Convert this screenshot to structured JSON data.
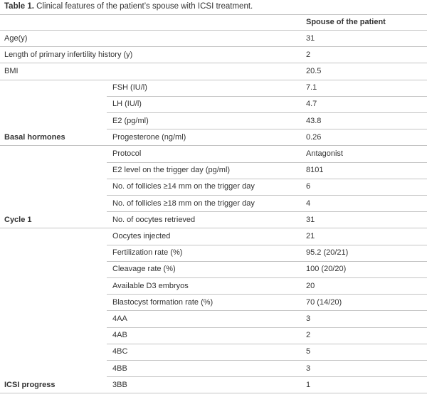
{
  "table": {
    "title": {
      "label": "Table 1.",
      "text": "Clinical features of the patient’s spouse with ICSI treatment."
    },
    "header": "Spouse of the patient",
    "rows": [
      {
        "label": "Age(y)",
        "value": 31
      },
      {
        "label": "Length of primary infertility history (y)",
        "value": 2
      },
      {
        "label": "BMI",
        "value": 20.5
      },
      {
        "param": "FSH (IU/l)",
        "value": 7.1
      },
      {
        "param": "LH (IU/l)",
        "value": 4.7
      },
      {
        "param": "E2 (pg/ml)",
        "value": 43.8
      },
      {
        "group": "Basal hormones",
        "param": "Progesterone (ng/ml)",
        "value": 0.26
      },
      {
        "param": "Protocol",
        "value": "Antagonist"
      },
      {
        "param": "E2 level on the trigger day (pg/ml)",
        "value": 8101
      },
      {
        "param": "No. of follicles ≥14 mm on the trigger day",
        "value": 6
      },
      {
        "param": "No. of follicles ≥18 mm on the trigger day",
        "value": 4
      },
      {
        "group": "Cycle 1",
        "param": "No. of oocytes retrieved",
        "value": 31
      },
      {
        "param": "Oocytes injected",
        "value": 21
      },
      {
        "param": "Fertilization rate (%)",
        "value": "95.2 (20/21)"
      },
      {
        "param": "Cleavage rate (%)",
        "value": "100 (20/20)"
      },
      {
        "param": "Available D3 embryos",
        "value": 20
      },
      {
        "param": "Blastocyst formation rate (%)",
        "value": "70 (14/20)"
      },
      {
        "param": "4AA",
        "value": 3
      },
      {
        "param": "4AB",
        "value": 2
      },
      {
        "param": "4BC",
        "value": 5
      },
      {
        "param": "4BB",
        "value": 3
      },
      {
        "group": "ICSI progress",
        "param": "3BB",
        "value": 1
      }
    ]
  }
}
